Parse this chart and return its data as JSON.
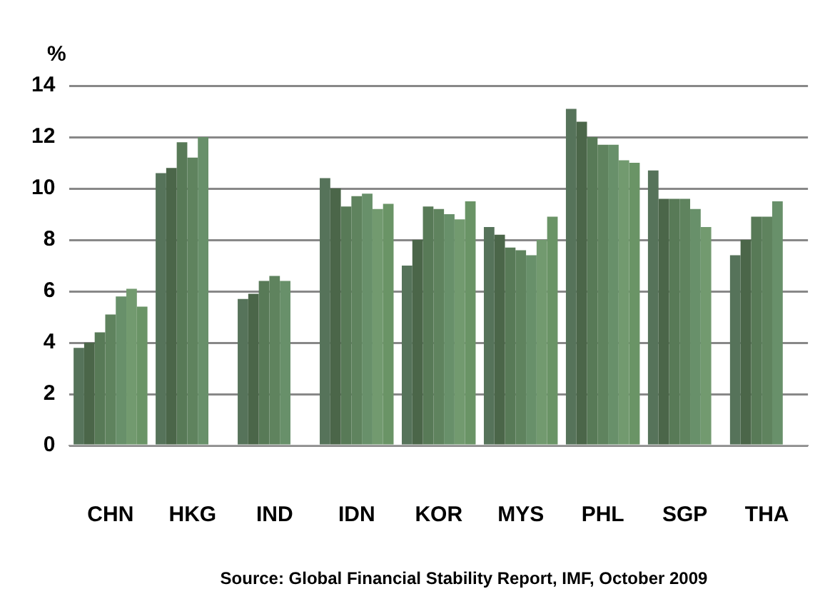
{
  "chart_data": {
    "type": "bar",
    "ylabel": "%",
    "categories": [
      "CHN",
      "HKG",
      "IND",
      "IDN",
      "KOR",
      "MYS",
      "PHL",
      "SGP",
      "THA"
    ],
    "series": [
      {
        "color": "#56735a",
        "values": [
          3.8,
          10.6,
          5.7,
          10.4,
          7.0,
          8.5,
          13.1,
          10.7,
          7.4
        ]
      },
      {
        "color": "#4b6649",
        "values": [
          4.0,
          10.8,
          5.9,
          10.0,
          8.0,
          8.2,
          12.6,
          9.6,
          8.0
        ]
      },
      {
        "color": "#587a57",
        "values": [
          4.4,
          11.8,
          6.4,
          9.3,
          9.3,
          7.7,
          12.0,
          9.6,
          8.9
        ]
      },
      {
        "color": "#5f835e",
        "values": [
          5.1,
          11.2,
          6.6,
          9.7,
          9.2,
          7.6,
          11.7,
          9.6,
          8.9
        ]
      },
      {
        "color": "#68906a",
        "values": [
          5.8,
          12.0,
          6.4,
          9.8,
          9.0,
          7.4,
          11.7,
          9.2,
          9.5
        ]
      },
      {
        "color": "#729a6f",
        "values": [
          6.1,
          null,
          null,
          9.2,
          8.8,
          8.0,
          11.1,
          8.5,
          null
        ]
      },
      {
        "color": "#6a9466",
        "values": [
          5.4,
          null,
          null,
          9.4,
          9.5,
          8.9,
          11.0,
          null,
          null
        ]
      }
    ],
    "ylim": [
      0,
      14
    ],
    "yticks": [
      0,
      2,
      4,
      6,
      8,
      10,
      12,
      14
    ],
    "grid": "y",
    "legend": false,
    "annotations": [
      "Source: Global Financial Stability Report, IMF, October 2009"
    ]
  }
}
